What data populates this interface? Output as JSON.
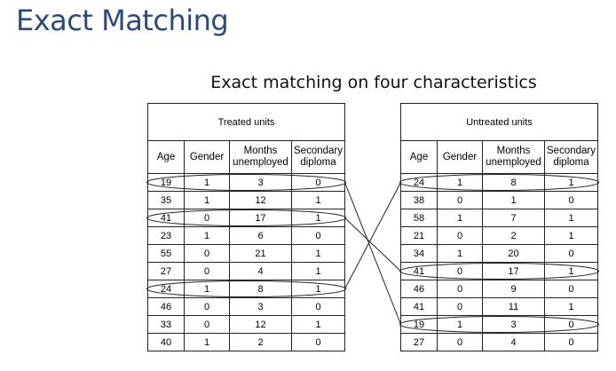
{
  "slide_title": "Exact Matching",
  "subtitle": "Exact matching on four characteristics",
  "treated": {
    "caption": "Treated units",
    "headers": {
      "age": "Age",
      "gender": "Gender",
      "months_1": "Months",
      "months_2": "unemployed",
      "diploma_1": "Secondary",
      "diploma_2": "diploma"
    },
    "rows": [
      {
        "age": "19",
        "gender": "1",
        "months": "3",
        "diploma": "0"
      },
      {
        "age": "35",
        "gender": "1",
        "months": "12",
        "diploma": "1"
      },
      {
        "age": "41",
        "gender": "0",
        "months": "17",
        "diploma": "1"
      },
      {
        "age": "23",
        "gender": "1",
        "months": "6",
        "diploma": "0"
      },
      {
        "age": "55",
        "gender": "0",
        "months": "21",
        "diploma": "1"
      },
      {
        "age": "27",
        "gender": "0",
        "months": "4",
        "diploma": "1"
      },
      {
        "age": "24",
        "gender": "1",
        "months": "8",
        "diploma": "1"
      },
      {
        "age": "46",
        "gender": "0",
        "months": "3",
        "diploma": "0"
      },
      {
        "age": "33",
        "gender": "0",
        "months": "12",
        "diploma": "1"
      },
      {
        "age": "40",
        "gender": "1",
        "months": "2",
        "diploma": "0"
      }
    ]
  },
  "untreated": {
    "caption": "Untreated units",
    "headers": {
      "age": "Age",
      "gender": "Gender",
      "months_1": "Months",
      "months_2": "unemployed",
      "diploma_1": "Secondary",
      "diploma_2": "diploma"
    },
    "rows": [
      {
        "age": "24",
        "gender": "1",
        "months": "8",
        "diploma": "1"
      },
      {
        "age": "38",
        "gender": "0",
        "months": "1",
        "diploma": "0"
      },
      {
        "age": "58",
        "gender": "1",
        "months": "7",
        "diploma": "1"
      },
      {
        "age": "21",
        "gender": "0",
        "months": "2",
        "diploma": "1"
      },
      {
        "age": "34",
        "gender": "1",
        "months": "20",
        "diploma": "0"
      },
      {
        "age": "41",
        "gender": "0",
        "months": "17",
        "diploma": "1"
      },
      {
        "age": "46",
        "gender": "0",
        "months": "9",
        "diploma": "0"
      },
      {
        "age": "41",
        "gender": "0",
        "months": "11",
        "diploma": "1"
      },
      {
        "age": "19",
        "gender": "1",
        "months": "3",
        "diploma": "0"
      },
      {
        "age": "27",
        "gender": "0",
        "months": "4",
        "diploma": "0"
      }
    ]
  },
  "matches": [
    {
      "treated_row": 1,
      "untreated_row": 9
    },
    {
      "treated_row": 3,
      "untreated_row": 6
    },
    {
      "treated_row": 7,
      "untreated_row": 1
    }
  ],
  "colors": {
    "title": "#2b4a78",
    "text": "#000000",
    "lines": "#222222"
  }
}
